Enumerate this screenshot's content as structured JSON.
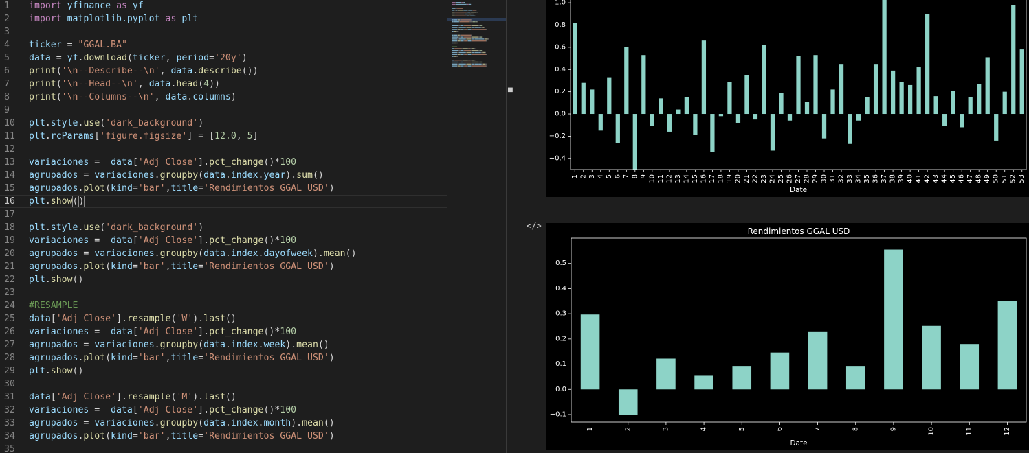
{
  "editor": {
    "active_line": 16,
    "lines": [
      [
        [
          "kw",
          "import"
        ],
        [
          "op",
          " "
        ],
        [
          "var",
          "yfinance"
        ],
        [
          "op",
          " "
        ],
        [
          "kw",
          "as"
        ],
        [
          "op",
          " "
        ],
        [
          "var",
          "yf"
        ]
      ],
      [
        [
          "kw",
          "import"
        ],
        [
          "op",
          " "
        ],
        [
          "var",
          "matplotlib.pyplot"
        ],
        [
          "op",
          " "
        ],
        [
          "kw",
          "as"
        ],
        [
          "op",
          " "
        ],
        [
          "var",
          "plt"
        ]
      ],
      [],
      [
        [
          "var",
          "ticker"
        ],
        [
          "op",
          " = "
        ],
        [
          "str",
          "\"GGAL.BA\""
        ]
      ],
      [
        [
          "var",
          "data"
        ],
        [
          "op",
          " = "
        ],
        [
          "var",
          "yf"
        ],
        [
          "op",
          "."
        ],
        [
          "fn",
          "download"
        ],
        [
          "op",
          "("
        ],
        [
          "var",
          "ticker"
        ],
        [
          "op",
          ", "
        ],
        [
          "var",
          "period"
        ],
        [
          "op",
          "="
        ],
        [
          "str",
          "'20y'"
        ],
        [
          "op",
          ")"
        ]
      ],
      [
        [
          "fn",
          "print"
        ],
        [
          "op",
          "("
        ],
        [
          "str",
          "'\\n--Describe--\\n'"
        ],
        [
          "op",
          ", "
        ],
        [
          "var",
          "data"
        ],
        [
          "op",
          "."
        ],
        [
          "fn",
          "describe"
        ],
        [
          "op",
          "())"
        ]
      ],
      [
        [
          "fn",
          "print"
        ],
        [
          "op",
          "("
        ],
        [
          "str",
          "'\\n--Head--\\n'"
        ],
        [
          "op",
          ", "
        ],
        [
          "var",
          "data"
        ],
        [
          "op",
          "."
        ],
        [
          "fn",
          "head"
        ],
        [
          "op",
          "("
        ],
        [
          "num",
          "4"
        ],
        [
          "op",
          "))"
        ]
      ],
      [
        [
          "fn",
          "print"
        ],
        [
          "op",
          "("
        ],
        [
          "str",
          "'\\n--Columns--\\n'"
        ],
        [
          "op",
          ", "
        ],
        [
          "var",
          "data"
        ],
        [
          "op",
          "."
        ],
        [
          "var",
          "columns"
        ],
        [
          "op",
          ")"
        ]
      ],
      [],
      [
        [
          "var",
          "plt"
        ],
        [
          "op",
          "."
        ],
        [
          "var",
          "style"
        ],
        [
          "op",
          "."
        ],
        [
          "fn",
          "use"
        ],
        [
          "op",
          "("
        ],
        [
          "str",
          "'dark_background'"
        ],
        [
          "op",
          ")"
        ]
      ],
      [
        [
          "var",
          "plt"
        ],
        [
          "op",
          "."
        ],
        [
          "var",
          "rcParams"
        ],
        [
          "op",
          "["
        ],
        [
          "str",
          "'figure.figsize'"
        ],
        [
          "op",
          "] = ["
        ],
        [
          "num",
          "12.0"
        ],
        [
          "op",
          ", "
        ],
        [
          "num",
          "5"
        ],
        [
          "op",
          "]"
        ]
      ],
      [],
      [
        [
          "var",
          "variaciones"
        ],
        [
          "op",
          " =  "
        ],
        [
          "var",
          "data"
        ],
        [
          "op",
          "["
        ],
        [
          "str",
          "'Adj Close'"
        ],
        [
          "op",
          "]."
        ],
        [
          "fn",
          "pct_change"
        ],
        [
          "op",
          "()*"
        ],
        [
          "num",
          "100"
        ]
      ],
      [
        [
          "var",
          "agrupados"
        ],
        [
          "op",
          " = "
        ],
        [
          "var",
          "variaciones"
        ],
        [
          "op",
          "."
        ],
        [
          "fn",
          "groupby"
        ],
        [
          "op",
          "("
        ],
        [
          "var",
          "data"
        ],
        [
          "op",
          "."
        ],
        [
          "var",
          "index"
        ],
        [
          "op",
          "."
        ],
        [
          "var",
          "year"
        ],
        [
          "op",
          ")."
        ],
        [
          "fn",
          "sum"
        ],
        [
          "op",
          "()"
        ]
      ],
      [
        [
          "var",
          "agrupados"
        ],
        [
          "op",
          "."
        ],
        [
          "fn",
          "plot"
        ],
        [
          "op",
          "("
        ],
        [
          "var",
          "kind"
        ],
        [
          "op",
          "="
        ],
        [
          "str",
          "'bar'"
        ],
        [
          "op",
          ","
        ],
        [
          "var",
          "title"
        ],
        [
          "op",
          "="
        ],
        [
          "str",
          "'Rendimientos GGAL USD'"
        ],
        [
          "op",
          ")"
        ]
      ],
      [
        [
          "var",
          "plt"
        ],
        [
          "op",
          "."
        ],
        [
          "fn",
          "show"
        ],
        [
          "br",
          "("
        ],
        [
          "cur",
          ""
        ],
        [
          "br",
          ")"
        ]
      ],
      [],
      [
        [
          "var",
          "plt"
        ],
        [
          "op",
          "."
        ],
        [
          "var",
          "style"
        ],
        [
          "op",
          "."
        ],
        [
          "fn",
          "use"
        ],
        [
          "op",
          "("
        ],
        [
          "str",
          "'dark_background'"
        ],
        [
          "op",
          ")"
        ]
      ],
      [
        [
          "var",
          "variaciones"
        ],
        [
          "op",
          " =  "
        ],
        [
          "var",
          "data"
        ],
        [
          "op",
          "["
        ],
        [
          "str",
          "'Adj Close'"
        ],
        [
          "op",
          "]."
        ],
        [
          "fn",
          "pct_change"
        ],
        [
          "op",
          "()*"
        ],
        [
          "num",
          "100"
        ]
      ],
      [
        [
          "var",
          "agrupados"
        ],
        [
          "op",
          " = "
        ],
        [
          "var",
          "variaciones"
        ],
        [
          "op",
          "."
        ],
        [
          "fn",
          "groupby"
        ],
        [
          "op",
          "("
        ],
        [
          "var",
          "data"
        ],
        [
          "op",
          "."
        ],
        [
          "var",
          "index"
        ],
        [
          "op",
          "."
        ],
        [
          "var",
          "dayofweek"
        ],
        [
          "op",
          ")."
        ],
        [
          "fn",
          "mean"
        ],
        [
          "op",
          "()"
        ]
      ],
      [
        [
          "var",
          "agrupados"
        ],
        [
          "op",
          "."
        ],
        [
          "fn",
          "plot"
        ],
        [
          "op",
          "("
        ],
        [
          "var",
          "kind"
        ],
        [
          "op",
          "="
        ],
        [
          "str",
          "'bar'"
        ],
        [
          "op",
          ","
        ],
        [
          "var",
          "title"
        ],
        [
          "op",
          "="
        ],
        [
          "str",
          "'Rendimientos GGAL USD'"
        ],
        [
          "op",
          ")"
        ]
      ],
      [
        [
          "var",
          "plt"
        ],
        [
          "op",
          "."
        ],
        [
          "fn",
          "show"
        ],
        [
          "op",
          "()"
        ]
      ],
      [],
      [
        [
          "com",
          "#RESAMPLE"
        ]
      ],
      [
        [
          "var",
          "data"
        ],
        [
          "op",
          "["
        ],
        [
          "str",
          "'Adj Close'"
        ],
        [
          "op",
          "]."
        ],
        [
          "fn",
          "resample"
        ],
        [
          "op",
          "("
        ],
        [
          "str",
          "'W'"
        ],
        [
          "op",
          ")."
        ],
        [
          "fn",
          "last"
        ],
        [
          "op",
          "()"
        ]
      ],
      [
        [
          "var",
          "variaciones"
        ],
        [
          "op",
          " =  "
        ],
        [
          "var",
          "data"
        ],
        [
          "op",
          "["
        ],
        [
          "str",
          "'Adj Close'"
        ],
        [
          "op",
          "]."
        ],
        [
          "fn",
          "pct_change"
        ],
        [
          "op",
          "()*"
        ],
        [
          "num",
          "100"
        ]
      ],
      [
        [
          "var",
          "agrupados"
        ],
        [
          "op",
          " = "
        ],
        [
          "var",
          "variaciones"
        ],
        [
          "op",
          "."
        ],
        [
          "fn",
          "groupby"
        ],
        [
          "op",
          "("
        ],
        [
          "var",
          "data"
        ],
        [
          "op",
          "."
        ],
        [
          "var",
          "index"
        ],
        [
          "op",
          "."
        ],
        [
          "var",
          "week"
        ],
        [
          "op",
          ")."
        ],
        [
          "fn",
          "mean"
        ],
        [
          "op",
          "()"
        ]
      ],
      [
        [
          "var",
          "agrupados"
        ],
        [
          "op",
          "."
        ],
        [
          "fn",
          "plot"
        ],
        [
          "op",
          "("
        ],
        [
          "var",
          "kind"
        ],
        [
          "op",
          "="
        ],
        [
          "str",
          "'bar'"
        ],
        [
          "op",
          ","
        ],
        [
          "var",
          "title"
        ],
        [
          "op",
          "="
        ],
        [
          "str",
          "'Rendimientos GGAL USD'"
        ],
        [
          "op",
          ")"
        ]
      ],
      [
        [
          "var",
          "plt"
        ],
        [
          "op",
          "."
        ],
        [
          "fn",
          "show"
        ],
        [
          "op",
          "()"
        ]
      ],
      [],
      [
        [
          "var",
          "data"
        ],
        [
          "op",
          "["
        ],
        [
          "str",
          "'Adj Close'"
        ],
        [
          "op",
          "]."
        ],
        [
          "fn",
          "resample"
        ],
        [
          "op",
          "("
        ],
        [
          "str",
          "'M'"
        ],
        [
          "op",
          ")."
        ],
        [
          "fn",
          "last"
        ],
        [
          "op",
          "()"
        ]
      ],
      [
        [
          "var",
          "variaciones"
        ],
        [
          "op",
          " =  "
        ],
        [
          "var",
          "data"
        ],
        [
          "op",
          "["
        ],
        [
          "str",
          "'Adj Close'"
        ],
        [
          "op",
          "]."
        ],
        [
          "fn",
          "pct_change"
        ],
        [
          "op",
          "()*"
        ],
        [
          "num",
          "100"
        ]
      ],
      [
        [
          "var",
          "agrupados"
        ],
        [
          "op",
          " = "
        ],
        [
          "var",
          "variaciones"
        ],
        [
          "op",
          "."
        ],
        [
          "fn",
          "groupby"
        ],
        [
          "op",
          "("
        ],
        [
          "var",
          "data"
        ],
        [
          "op",
          "."
        ],
        [
          "var",
          "index"
        ],
        [
          "op",
          "."
        ],
        [
          "var",
          "month"
        ],
        [
          "op",
          ")."
        ],
        [
          "fn",
          "mean"
        ],
        [
          "op",
          "()"
        ]
      ],
      [
        [
          "var",
          "agrupados"
        ],
        [
          "op",
          "."
        ],
        [
          "fn",
          "plot"
        ],
        [
          "op",
          "("
        ],
        [
          "var",
          "kind"
        ],
        [
          "op",
          "="
        ],
        [
          "str",
          "'bar'"
        ],
        [
          "op",
          ","
        ],
        [
          "var",
          "title"
        ],
        [
          "op",
          "="
        ],
        [
          "str",
          "'Rendimientos GGAL USD'"
        ],
        [
          "op",
          ")"
        ]
      ],
      []
    ]
  },
  "output": {
    "code_toggle_icon": "code-toggle-icon",
    "code_toggle_glyph": "</>",
    "sash_icon": "drag-handle-icon",
    "sash_glyph": "▀"
  },
  "chart_data": [
    {
      "type": "bar",
      "title": "",
      "xlabel": "Date",
      "ylabel": "",
      "ylim": [
        -0.5,
        1.05
      ],
      "yticks": [
        -0.4,
        -0.2,
        0.0,
        0.2,
        0.4,
        0.6,
        0.8,
        1.0
      ],
      "ytick_labels": [
        "−0.4",
        "−0.2",
        "0.0",
        "0.2",
        "0.4",
        "0.6",
        "0.8",
        "1.0"
      ],
      "color": "#8dd3c7",
      "categories": [
        "1",
        "2",
        "3",
        "4",
        "5",
        "6",
        "7",
        "8",
        "9",
        "10",
        "11",
        "12",
        "13",
        "14",
        "15",
        "16",
        "17",
        "18",
        "19",
        "20",
        "21",
        "22",
        "23",
        "24",
        "25",
        "26",
        "27",
        "28",
        "29",
        "30",
        "31",
        "32",
        "33",
        "34",
        "35",
        "36",
        "37",
        "38",
        "39",
        "40",
        "41",
        "42",
        "43",
        "44",
        "45",
        "46",
        "47",
        "48",
        "49",
        "50",
        "51",
        "52",
        "53"
      ],
      "values": [
        0.82,
        0.28,
        0.22,
        -0.15,
        0.33,
        -0.26,
        0.6,
        -0.5,
        0.53,
        -0.11,
        0.14,
        -0.16,
        0.04,
        0.15,
        -0.19,
        0.66,
        -0.34,
        -0.02,
        0.29,
        -0.08,
        0.35,
        -0.05,
        0.62,
        -0.33,
        0.19,
        -0.06,
        0.52,
        0.11,
        0.53,
        -0.22,
        0.22,
        0.45,
        -0.27,
        -0.06,
        0.15,
        0.45,
        1.05,
        0.39,
        0.29,
        0.26,
        0.42,
        0.9,
        0.16,
        -0.11,
        0.21,
        -0.12,
        0.15,
        0.27,
        0.51,
        -0.24,
        0.2,
        0.98,
        0.58
      ]
    },
    {
      "type": "bar",
      "title": "Rendimientos GGAL USD",
      "xlabel": "Date",
      "ylabel": "",
      "ylim": [
        -0.13,
        0.6
      ],
      "yticks": [
        -0.1,
        0.0,
        0.1,
        0.2,
        0.3,
        0.4,
        0.5
      ],
      "ytick_labels": [
        "−0.1",
        "0.0",
        "0.1",
        "0.2",
        "0.3",
        "0.4",
        "0.5"
      ],
      "color": "#8dd3c7",
      "categories": [
        "1",
        "2",
        "3",
        "4",
        "5",
        "6",
        "7",
        "8",
        "9",
        "10",
        "11",
        "12"
      ],
      "values": [
        0.297,
        -0.102,
        0.122,
        0.054,
        0.093,
        0.146,
        0.23,
        0.093,
        0.555,
        0.252,
        0.18,
        0.351
      ]
    }
  ]
}
